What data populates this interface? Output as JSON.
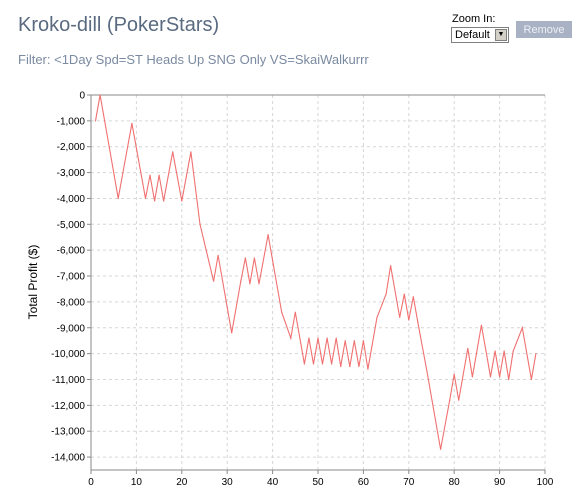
{
  "header": {
    "title": "Kroko-dill (PokerStars)",
    "filter": "Filter: <1Day Spd=ST Heads Up SNG Only VS=SkaiWalkurrr"
  },
  "controls": {
    "zoom_label": "Zoom In:",
    "zoom_value": "Default",
    "remove_label": "Remove"
  },
  "chart_data": {
    "type": "line",
    "title": "",
    "xlabel": "",
    "ylabel": "Total Profit ($)",
    "xlim": [
      0,
      100
    ],
    "ylim": [
      -14500,
      0
    ],
    "xticks": [
      0,
      10,
      20,
      30,
      40,
      50,
      60,
      70,
      80,
      90,
      100
    ],
    "yticks": [
      0,
      -1000,
      -2000,
      -3000,
      -4000,
      -5000,
      -6000,
      -7000,
      -8000,
      -9000,
      -10000,
      -11000,
      -12000,
      -13000,
      -14000
    ],
    "ytick_labels": [
      "0",
      "-1,000",
      "-2,000",
      "-3,000",
      "-4,000",
      "-5,000",
      "-6,000",
      "-7,000",
      "-8,000",
      "-9,000",
      "-10,000",
      "-11,000",
      "-12,000",
      "-13,000",
      "-14,000"
    ],
    "grid": true,
    "line_color": "#f07070",
    "series": [
      {
        "x": [
          1,
          2,
          4,
          6,
          9,
          12,
          13,
          14,
          15,
          16,
          18,
          20,
          22,
          24,
          27,
          28,
          30,
          31,
          33,
          34,
          35,
          36,
          37,
          39,
          40,
          42,
          44,
          45,
          47,
          48,
          49,
          50,
          51,
          52,
          53,
          54,
          55,
          56,
          57,
          58,
          59,
          60,
          61,
          63,
          65,
          66,
          68,
          69,
          70,
          71,
          72,
          74,
          77,
          79,
          80,
          81,
          83,
          84,
          86,
          87,
          88,
          89,
          90,
          91,
          92,
          93,
          95,
          97,
          98
        ],
        "y": [
          -1000,
          0,
          -2000,
          -4000,
          -1100,
          -4000,
          -3100,
          -4100,
          -3100,
          -4100,
          -2200,
          -4100,
          -2200,
          -5000,
          -7200,
          -6200,
          -8200,
          -9200,
          -7200,
          -6300,
          -7300,
          -6300,
          -7300,
          -5400,
          -6400,
          -8400,
          -9400,
          -8400,
          -10400,
          -9400,
          -10400,
          -9400,
          -10400,
          -9400,
          -10400,
          -9400,
          -10500,
          -9500,
          -10500,
          -9500,
          -10500,
          -9500,
          -10600,
          -8600,
          -7700,
          -6600,
          -8600,
          -7700,
          -8700,
          -7800,
          -8800,
          -10700,
          -13700,
          -11800,
          -10800,
          -11800,
          -9800,
          -10900,
          -8900,
          -9900,
          -10900,
          -9900,
          -10900,
          -9900,
          -11000,
          -9900,
          -9000,
          -11000,
          -10000
        ]
      }
    ]
  }
}
